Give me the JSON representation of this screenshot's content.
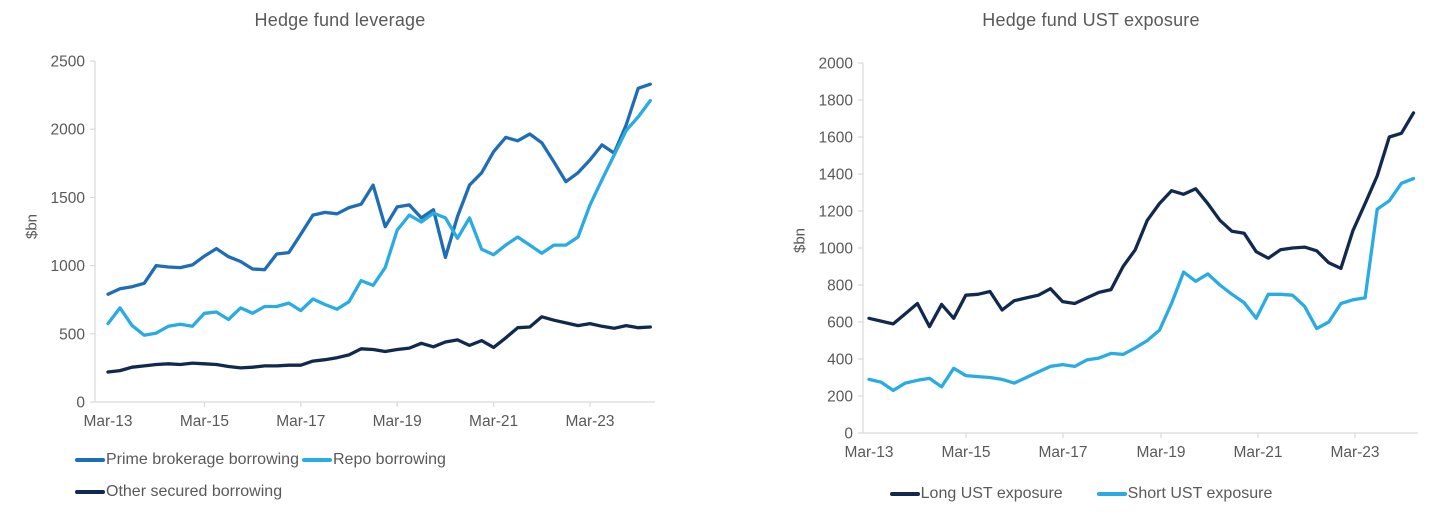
{
  "figure": {
    "background": "#ffffff",
    "text_color": "#595959",
    "axis_color": "#d9d9d9"
  },
  "chart_data": [
    {
      "type": "line",
      "title": "Hedge fund leverage",
      "ylabel": "$bn",
      "ylim": [
        0,
        2500
      ],
      "ytick_step": 500,
      "grid": false,
      "legend_position": "bottom",
      "xtick_labels": [
        "Mar-13",
        "Mar-15",
        "Mar-17",
        "Mar-19",
        "Mar-21",
        "Mar-23"
      ],
      "x": [
        "Mar-13",
        "Jun-13",
        "Sep-13",
        "Dec-13",
        "Mar-14",
        "Jun-14",
        "Sep-14",
        "Dec-14",
        "Mar-15",
        "Jun-15",
        "Sep-15",
        "Dec-15",
        "Mar-16",
        "Jun-16",
        "Sep-16",
        "Dec-16",
        "Mar-17",
        "Jun-17",
        "Sep-17",
        "Dec-17",
        "Mar-18",
        "Jun-18",
        "Sep-18",
        "Dec-18",
        "Mar-19",
        "Jun-19",
        "Sep-19",
        "Dec-19",
        "Mar-20",
        "Jun-20",
        "Sep-20",
        "Dec-20",
        "Mar-21",
        "Jun-21",
        "Sep-21",
        "Dec-21",
        "Mar-22",
        "Jun-22",
        "Sep-22",
        "Dec-22",
        "Mar-23",
        "Jun-23",
        "Sep-23",
        "Dec-23",
        "Mar-24",
        "Jun-24"
      ],
      "series": [
        {
          "name": "Prime brokerage borrowing",
          "color": "#1e6db6",
          "values": [
            790,
            830,
            845,
            870,
            1000,
            990,
            985,
            1005,
            1070,
            1125,
            1065,
            1030,
            975,
            970,
            1085,
            1095,
            1230,
            1370,
            1390,
            1380,
            1425,
            1450,
            1590,
            1285,
            1430,
            1445,
            1350,
            1410,
            1060,
            1360,
            1590,
            1680,
            1835,
            1940,
            1915,
            1965,
            1900,
            1760,
            1615,
            1680,
            1775,
            1885,
            1825,
            2030,
            2300,
            2330
          ]
        },
        {
          "name": "Repo borrowing",
          "color": "#29abe3",
          "values": [
            575,
            690,
            560,
            490,
            505,
            555,
            570,
            555,
            650,
            660,
            605,
            690,
            650,
            700,
            700,
            725,
            670,
            755,
            715,
            680,
            735,
            890,
            855,
            985,
            1260,
            1370,
            1320,
            1385,
            1350,
            1200,
            1350,
            1120,
            1080,
            1150,
            1210,
            1150,
            1090,
            1150,
            1150,
            1210,
            1445,
            1630,
            1810,
            1990,
            2090,
            2210
          ]
        },
        {
          "name": "Other secured borrowing",
          "color": "#12294f",
          "values": [
            220,
            230,
            255,
            265,
            275,
            280,
            275,
            285,
            280,
            275,
            260,
            250,
            255,
            265,
            265,
            270,
            270,
            300,
            310,
            325,
            345,
            390,
            385,
            370,
            385,
            395,
            430,
            405,
            440,
            455,
            415,
            450,
            400,
            470,
            545,
            550,
            625,
            600,
            580,
            560,
            575,
            555,
            540,
            560,
            545,
            550
          ]
        }
      ]
    },
    {
      "type": "line",
      "title": "Hedge fund UST exposure",
      "ylabel": "$bn",
      "ylim": [
        0,
        2000
      ],
      "ytick_step": 200,
      "grid": false,
      "legend_position": "bottom",
      "xtick_labels": [
        "Mar-13",
        "Mar-15",
        "Mar-17",
        "Mar-19",
        "Mar-21",
        "Mar-23"
      ],
      "x": [
        "Mar-13",
        "Jun-13",
        "Sep-13",
        "Dec-13",
        "Mar-14",
        "Jun-14",
        "Sep-14",
        "Dec-14",
        "Mar-15",
        "Jun-15",
        "Sep-15",
        "Dec-15",
        "Mar-16",
        "Jun-16",
        "Sep-16",
        "Dec-16",
        "Mar-17",
        "Jun-17",
        "Sep-17",
        "Dec-17",
        "Mar-18",
        "Jun-18",
        "Sep-18",
        "Dec-18",
        "Mar-19",
        "Jun-19",
        "Sep-19",
        "Dec-19",
        "Mar-20",
        "Jun-20",
        "Sep-20",
        "Dec-20",
        "Mar-21",
        "Jun-21",
        "Sep-21",
        "Dec-21",
        "Mar-22",
        "Jun-22",
        "Sep-22",
        "Dec-22",
        "Mar-23",
        "Jun-23",
        "Sep-23",
        "Dec-23",
        "Mar-24",
        "Jun-24"
      ],
      "series": [
        {
          "name": "Long UST exposure",
          "color": "#12294f",
          "values": [
            620,
            605,
            590,
            645,
            700,
            575,
            695,
            620,
            745,
            750,
            765,
            665,
            715,
            730,
            745,
            780,
            710,
            700,
            730,
            760,
            775,
            900,
            990,
            1150,
            1240,
            1310,
            1290,
            1320,
            1240,
            1150,
            1090,
            1080,
            980,
            945,
            990,
            1000,
            1005,
            985,
            920,
            890,
            1095,
            1240,
            1390,
            1600,
            1620,
            1730
          ]
        },
        {
          "name": "Short UST exposure",
          "color": "#29abe3",
          "values": [
            290,
            275,
            230,
            270,
            285,
            295,
            250,
            350,
            310,
            305,
            300,
            290,
            270,
            300,
            330,
            360,
            370,
            360,
            395,
            405,
            430,
            425,
            460,
            500,
            555,
            700,
            870,
            820,
            860,
            800,
            750,
            705,
            620,
            750,
            750,
            745,
            685,
            565,
            600,
            700,
            720,
            730,
            1210,
            1255,
            1350,
            1375
          ]
        }
      ]
    }
  ]
}
